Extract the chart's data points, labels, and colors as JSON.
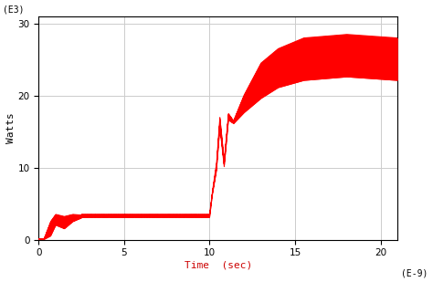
{
  "title": "",
  "xlabel": "Time  (sec)",
  "ylabel": "Watts",
  "xlabel_color": "#cc0000",
  "xlim": [
    0,
    21
  ],
  "ylim": [
    0,
    31
  ],
  "xticks": [
    0,
    5,
    10,
    15,
    20
  ],
  "yticks": [
    0,
    10,
    20,
    30
  ],
  "x_label_e9": "(E-9)",
  "y_label_e3": "(E3)",
  "background_color": "#ffffff",
  "plot_bg_color": "#ffffff",
  "grid_color": "#cccccc",
  "line_color": "#ff0000",
  "fill_color": "#ff0000"
}
